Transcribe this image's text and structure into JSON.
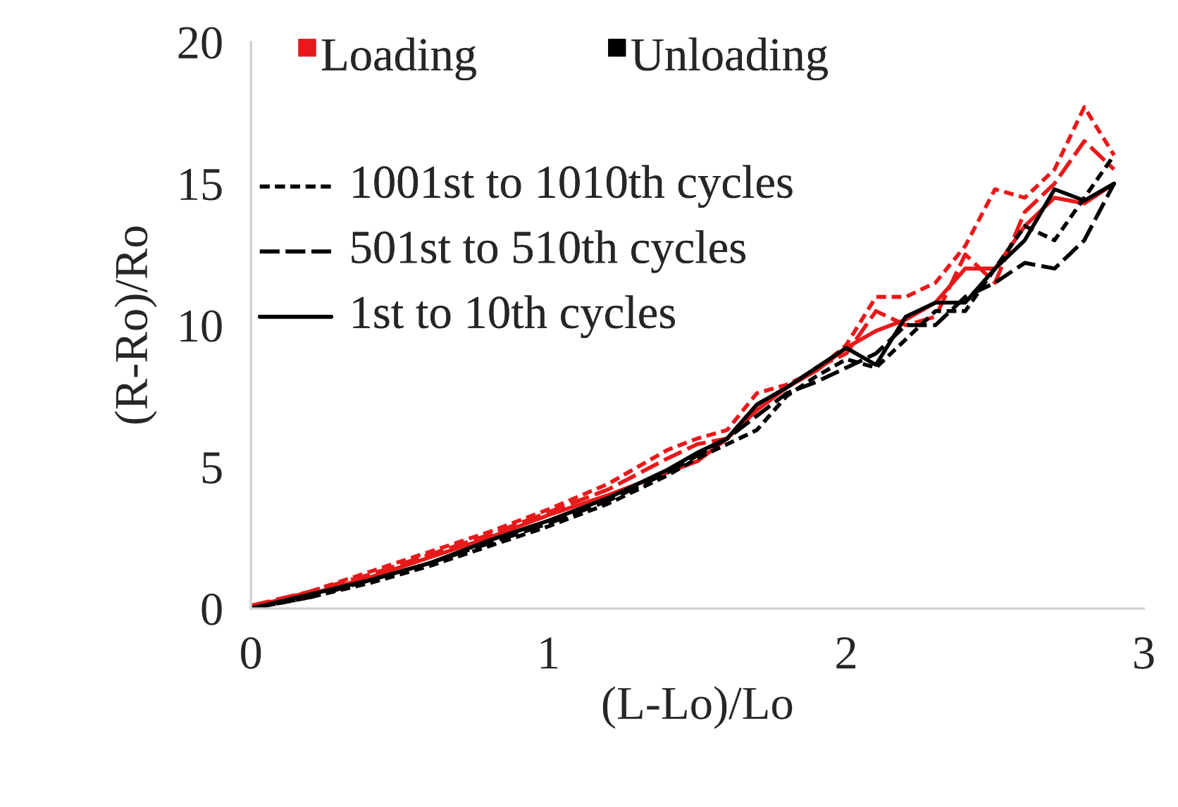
{
  "chart_data": {
    "type": "line",
    "xlabel": "(L-Lo)/Lo",
    "ylabel": "(R-Ro)/Ro",
    "x": [
      0,
      0.2,
      0.4,
      0.6,
      0.8,
      1.0,
      1.2,
      1.4,
      1.5,
      1.6,
      1.7,
      1.8,
      1.9,
      2.0,
      2.1,
      2.2,
      2.3,
      2.4,
      2.5,
      2.6,
      2.7,
      2.8,
      2.9
    ],
    "xlim": [
      0,
      3
    ],
    "xticks": [
      0,
      1,
      2,
      3
    ],
    "ylim": [
      0,
      20
    ],
    "yticks": [
      0,
      5,
      10,
      15,
      20
    ],
    "grid": false,
    "marker": "none",
    "annotations": [
      "Loading",
      "Unloading",
      "1001st to 1010th cycles",
      "501st to 510th cycles",
      "1st to 10th cycles"
    ],
    "series": [
      {
        "color": "#e8191b",
        "line_style": "dotted",
        "values": [
          0,
          0.6,
          1.3,
          2.0,
          2.7,
          3.5,
          4.4,
          5.6,
          6.0,
          6.3,
          7.6,
          7.9,
          8.4,
          9.3,
          11.0,
          11.0,
          11.5,
          12.8,
          14.8,
          14.5,
          15.5,
          17.7,
          16.0
        ]
      },
      {
        "color": "#e8191b",
        "line_style": "dashed",
        "values": [
          0.1,
          0.6,
          1.2,
          1.9,
          2.6,
          3.4,
          4.2,
          5.3,
          5.8,
          6.0,
          7.2,
          7.8,
          8.5,
          9.0,
          10.5,
          10.0,
          10.3,
          12.5,
          11.5,
          14.0,
          15.0,
          16.5,
          15.5
        ]
      },
      {
        "color": "#e8191b",
        "line_style": "solid",
        "values": [
          0.1,
          0.5,
          1.1,
          1.8,
          2.5,
          3.3,
          4.0,
          4.8,
          5.2,
          6.0,
          7.0,
          7.8,
          8.4,
          9.2,
          9.8,
          10.2,
          10.8,
          12.0,
          12.0,
          13.5,
          14.5,
          14.3,
          15.0
        ]
      },
      {
        "color": "#000000",
        "line_style": "dotted",
        "values": [
          0,
          0.4,
          0.9,
          1.5,
          2.2,
          2.9,
          3.7,
          4.7,
          5.3,
          5.8,
          6.3,
          7.5,
          8.2,
          8.8,
          8.5,
          9.5,
          10.5,
          10.5,
          12.0,
          13.5,
          13.0,
          14.5,
          16.0
        ]
      },
      {
        "color": "#000000",
        "line_style": "dashed",
        "values": [
          0,
          0.4,
          1.0,
          1.6,
          2.3,
          3.0,
          3.8,
          4.8,
          5.4,
          6.0,
          6.8,
          7.6,
          8.0,
          8.5,
          9.0,
          10.0,
          10.0,
          11.0,
          11.5,
          12.2,
          12.0,
          13.0,
          15.0
        ]
      },
      {
        "color": "#000000",
        "line_style": "solid",
        "values": [
          0,
          0.5,
          1.0,
          1.6,
          2.4,
          3.1,
          3.9,
          4.9,
          5.5,
          6.0,
          7.2,
          7.8,
          8.5,
          9.2,
          8.6,
          10.3,
          10.8,
          10.8,
          12.0,
          13.0,
          14.8,
          14.4,
          15.0
        ]
      }
    ]
  }
}
